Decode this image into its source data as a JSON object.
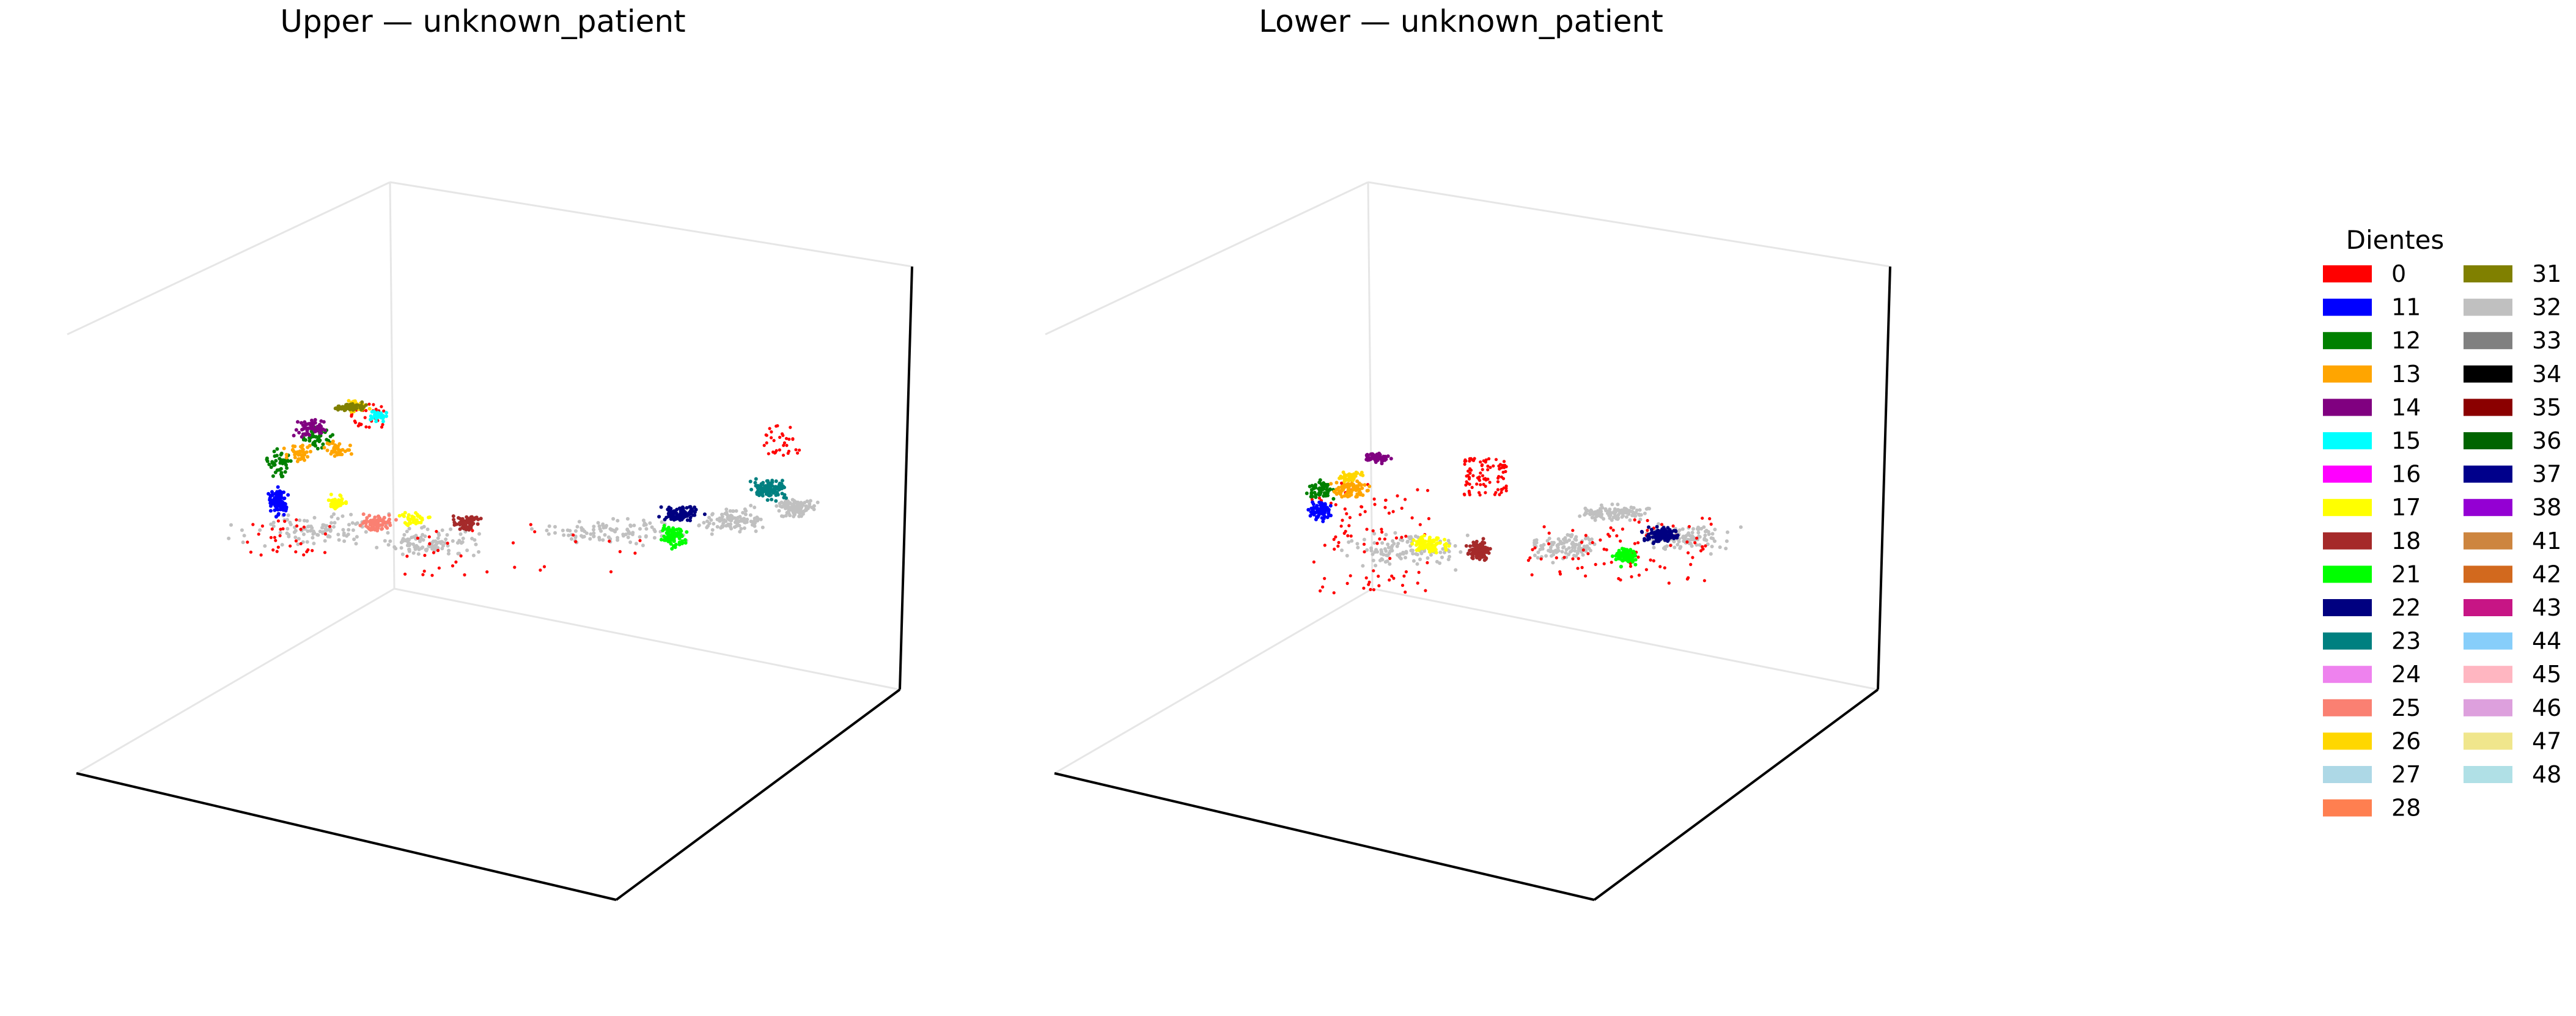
{
  "chart_data": [
    {
      "type": "scatter",
      "projection": "3d",
      "title": "Upper — unknown_patient",
      "grid": false,
      "series_rendering": "point clouds of segmented dental arch, colored by tooth label",
      "clusters": [
        {
          "label": "0",
          "approx_points": 130
        },
        {
          "label": "11",
          "approx_points": 90
        },
        {
          "label": "12",
          "approx_points": 90
        },
        {
          "label": "13",
          "approx_points": 80
        },
        {
          "label": "14",
          "approx_points": 60
        },
        {
          "label": "15",
          "approx_points": 30
        },
        {
          "label": "17",
          "approx_points": 70
        },
        {
          "label": "18",
          "approx_points": 70
        },
        {
          "label": "21",
          "approx_points": 90
        },
        {
          "label": "22",
          "approx_points": 90
        },
        {
          "label": "23",
          "approx_points": 110
        },
        {
          "label": "25",
          "approx_points": 70
        },
        {
          "label": "26",
          "approx_points": 40
        },
        {
          "label": "31",
          "approx_points": 60
        },
        {
          "label": "32",
          "approx_points": 520
        }
      ]
    },
    {
      "type": "scatter",
      "projection": "3d",
      "title": "Lower — unknown_patient",
      "grid": false,
      "series_rendering": "point clouds of segmented dental arch, colored by tooth label",
      "clusters": [
        {
          "label": "0",
          "approx_points": 260
        },
        {
          "label": "11",
          "approx_points": 70
        },
        {
          "label": "12",
          "approx_points": 60
        },
        {
          "label": "13",
          "approx_points": 80
        },
        {
          "label": "14",
          "approx_points": 60
        },
        {
          "label": "17",
          "approx_points": 80
        },
        {
          "label": "18",
          "approx_points": 130
        },
        {
          "label": "21",
          "approx_points": 90
        },
        {
          "label": "22",
          "approx_points": 110
        },
        {
          "label": "26",
          "approx_points": 40
        },
        {
          "label": "32",
          "approx_points": 440
        }
      ]
    }
  ],
  "legend": {
    "title": "Dientes",
    "placement": "right",
    "columns": 2,
    "entries": [
      {
        "label": "0",
        "color": "#ff0000"
      },
      {
        "label": "11",
        "color": "#0000ff"
      },
      {
        "label": "12",
        "color": "#008000"
      },
      {
        "label": "13",
        "color": "#ffa500"
      },
      {
        "label": "14",
        "color": "#800080"
      },
      {
        "label": "15",
        "color": "#00ffff"
      },
      {
        "label": "16",
        "color": "#ff00ff"
      },
      {
        "label": "17",
        "color": "#ffff00"
      },
      {
        "label": "18",
        "color": "#a52a2a"
      },
      {
        "label": "21",
        "color": "#00ff00"
      },
      {
        "label": "22",
        "color": "#000080"
      },
      {
        "label": "23",
        "color": "#008080"
      },
      {
        "label": "24",
        "color": "#ee82ee"
      },
      {
        "label": "25",
        "color": "#fa8072"
      },
      {
        "label": "26",
        "color": "#ffd700"
      },
      {
        "label": "27",
        "color": "#add8e6"
      },
      {
        "label": "28",
        "color": "#ff7f50"
      },
      {
        "label": "31",
        "color": "#808000"
      },
      {
        "label": "32",
        "color": "#c0c0c0"
      },
      {
        "label": "33",
        "color": "#808080"
      },
      {
        "label": "34",
        "color": "#000000"
      },
      {
        "label": "35",
        "color": "#8b0000"
      },
      {
        "label": "36",
        "color": "#006400"
      },
      {
        "label": "37",
        "color": "#00008b"
      },
      {
        "label": "38",
        "color": "#9400d3"
      },
      {
        "label": "41",
        "color": "#cd853f"
      },
      {
        "label": "42",
        "color": "#d2691e"
      },
      {
        "label": "43",
        "color": "#c71585"
      },
      {
        "label": "44",
        "color": "#87cefa"
      },
      {
        "label": "45",
        "color": "#ffb6c1"
      },
      {
        "label": "46",
        "color": "#dda0dd"
      },
      {
        "label": "47",
        "color": "#f0e68c"
      },
      {
        "label": "48",
        "color": "#b0e0e6"
      }
    ]
  }
}
